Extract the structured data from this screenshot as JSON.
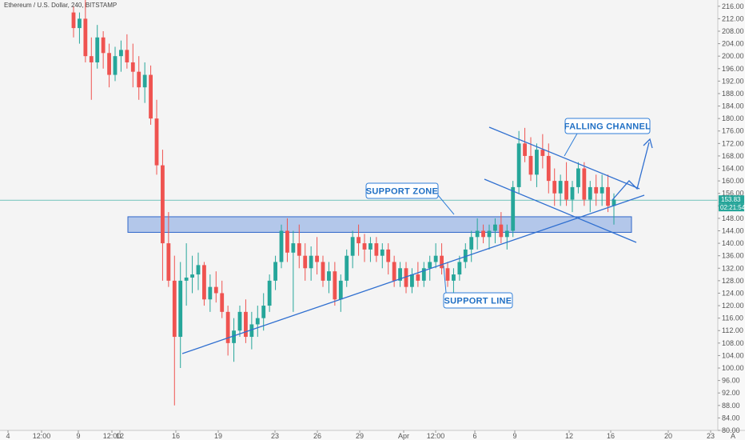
{
  "chart_data": {
    "type": "candlestick",
    "title": "Ethereum / U.S. Dollar, 240, BITSTAMP",
    "ylim": [
      80,
      218
    ],
    "y_ticks": [
      "216.00",
      "212.00",
      "208.00",
      "204.00",
      "200.00",
      "196.00",
      "192.00",
      "188.00",
      "184.00",
      "180.00",
      "176.00",
      "172.00",
      "168.00",
      "164.00",
      "160.00",
      "156.00",
      "152.00",
      "148.00",
      "144.00",
      "140.00",
      "136.00",
      "132.00",
      "128.00",
      "124.00",
      "120.00",
      "116.00",
      "112.00",
      "108.00",
      "104.00",
      "100.00",
      "96.00",
      "92.00",
      "88.00",
      "84.00",
      "80.00"
    ],
    "x_ticks": [
      "4",
      "12:00",
      "9",
      "12:00",
      "12",
      "16",
      "19",
      "23",
      "26",
      "29",
      "Apr",
      "12:00",
      "6",
      "9",
      "12",
      "16",
      "20",
      "23"
    ],
    "x_axis_letter": "A",
    "current_price": "153.83",
    "countdown": "02:21:54",
    "colors": {
      "up": "#26a69a",
      "down": "#ef5350",
      "annotation": "#1f6fc4",
      "zone": "#4a7fd9"
    },
    "annotations": {
      "falling_channel": "FALLING CHANNEL",
      "support_zone": "SUPPORT ZONE",
      "support_line": "SUPPORT LINE"
    },
    "support_zone": {
      "low": 143.5,
      "high": 148.5
    },
    "candles": [
      [
        214,
        216,
        206,
        209
      ],
      [
        209,
        214,
        204,
        212
      ],
      [
        212,
        218,
        198,
        200
      ],
      [
        200,
        206,
        186,
        198
      ],
      [
        198,
        210,
        196,
        206
      ],
      [
        206,
        208,
        196,
        201
      ],
      [
        201,
        204,
        190,
        194
      ],
      [
        194,
        203,
        192,
        200
      ],
      [
        200,
        205,
        195,
        202
      ],
      [
        202,
        207,
        196,
        198
      ],
      [
        198,
        204,
        190,
        195
      ],
      [
        195,
        200,
        186,
        190
      ],
      [
        190,
        198,
        185,
        194
      ],
      [
        194,
        197,
        178,
        180
      ],
      [
        180,
        186,
        162,
        165
      ],
      [
        165,
        170,
        128,
        140
      ],
      [
        140,
        150,
        126,
        128
      ],
      [
        128,
        136,
        88,
        110
      ],
      [
        110,
        134,
        100,
        128
      ],
      [
        128,
        140,
        120,
        129
      ],
      [
        129,
        136,
        124,
        130
      ],
      [
        130,
        137,
        125,
        133
      ],
      [
        133,
        134,
        120,
        122
      ],
      [
        122,
        130,
        118,
        126
      ],
      [
        126,
        131,
        121,
        124
      ],
      [
        124,
        128,
        116,
        118
      ],
      [
        118,
        120,
        104,
        108
      ],
      [
        108,
        116,
        102,
        112
      ],
      [
        112,
        120,
        110,
        118
      ],
      [
        118,
        122,
        108,
        110
      ],
      [
        110,
        118,
        106,
        114
      ],
      [
        114,
        120,
        110,
        116
      ],
      [
        116,
        124,
        112,
        120
      ],
      [
        120,
        130,
        118,
        128
      ],
      [
        128,
        136,
        125,
        134
      ],
      [
        134,
        146,
        132,
        144
      ],
      [
        144,
        148,
        134,
        137
      ],
      [
        137,
        144,
        118,
        140
      ],
      [
        140,
        146,
        132,
        136
      ],
      [
        136,
        140,
        128,
        132
      ],
      [
        132,
        139,
        128,
        136
      ],
      [
        136,
        142,
        130,
        134
      ],
      [
        134,
        136,
        126,
        128
      ],
      [
        128,
        134,
        124,
        131
      ],
      [
        131,
        134,
        120,
        122
      ],
      [
        122,
        130,
        118,
        128
      ],
      [
        128,
        138,
        126,
        136
      ],
      [
        136,
        144,
        132,
        142
      ],
      [
        142,
        146,
        136,
        140
      ],
      [
        140,
        143,
        134,
        138
      ],
      [
        138,
        142,
        134,
        140
      ],
      [
        140,
        142,
        134,
        136
      ],
      [
        136,
        140,
        132,
        138
      ],
      [
        138,
        140,
        130,
        134
      ],
      [
        134,
        136,
        126,
        128
      ],
      [
        128,
        134,
        126,
        132
      ],
      [
        132,
        134,
        124,
        126
      ],
      [
        126,
        132,
        124,
        130
      ],
      [
        130,
        134,
        126,
        128
      ],
      [
        128,
        134,
        126,
        132
      ],
      [
        132,
        136,
        128,
        134
      ],
      [
        134,
        140,
        132,
        136
      ],
      [
        136,
        140,
        130,
        132
      ],
      [
        132,
        134,
        126,
        128
      ],
      [
        128,
        132,
        124,
        130
      ],
      [
        130,
        136,
        128,
        134
      ],
      [
        134,
        140,
        132,
        138
      ],
      [
        138,
        144,
        134,
        142
      ],
      [
        142,
        148,
        138,
        144
      ],
      [
        144,
        146,
        140,
        142
      ],
      [
        142,
        146,
        138,
        144
      ],
      [
        144,
        148,
        140,
        146
      ],
      [
        146,
        150,
        140,
        142
      ],
      [
        142,
        146,
        138,
        144
      ],
      [
        144,
        160,
        142,
        158
      ],
      [
        158,
        176,
        156,
        172
      ],
      [
        172,
        177,
        166,
        168
      ],
      [
        168,
        174,
        160,
        162
      ],
      [
        162,
        172,
        158,
        170
      ],
      [
        170,
        175,
        164,
        168
      ],
      [
        168,
        172,
        156,
        160
      ],
      [
        160,
        164,
        152,
        156
      ],
      [
        156,
        162,
        152,
        160
      ],
      [
        160,
        166,
        152,
        154
      ],
      [
        154,
        160,
        150,
        158
      ],
      [
        158,
        166,
        156,
        164
      ],
      [
        164,
        166,
        152,
        154
      ],
      [
        154,
        160,
        150,
        158
      ],
      [
        158,
        162,
        152,
        156
      ],
      [
        156,
        162,
        152,
        158
      ],
      [
        158,
        162,
        150,
        152
      ],
      [
        152,
        156,
        146,
        154
      ]
    ]
  }
}
